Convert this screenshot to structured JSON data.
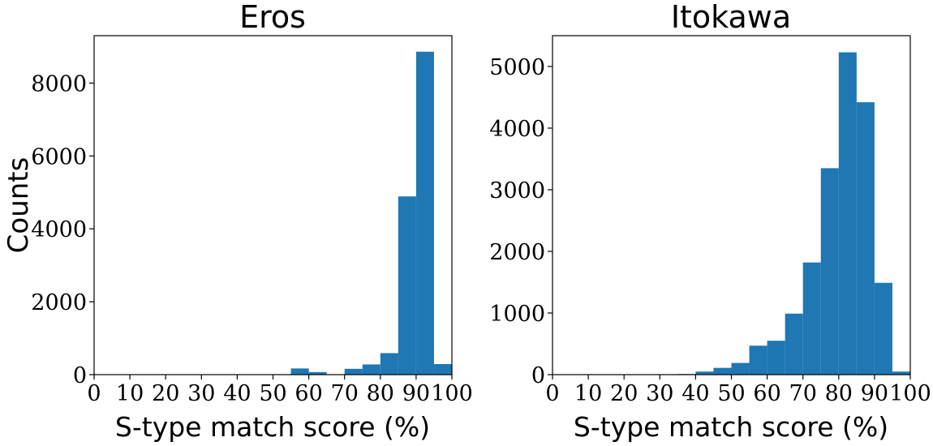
{
  "chart_data": [
    {
      "type": "bar",
      "title": "Eros",
      "xlabel": "S-type match score (%)",
      "ylabel": "Counts",
      "xlim": [
        0,
        100
      ],
      "ylim": [
        0,
        9300
      ],
      "bin_width": 5,
      "xticks": [
        "0",
        "10",
        "20",
        "30",
        "40",
        "50",
        "60",
        "70",
        "80",
        "90",
        "100"
      ],
      "yticks": [
        "0",
        "2000",
        "4000",
        "6000",
        "8000"
      ],
      "bins": [
        {
          "x0": 55,
          "x1": 60,
          "value": 170
        },
        {
          "x0": 60,
          "x1": 65,
          "value": 70
        },
        {
          "x0": 70,
          "x1": 75,
          "value": 160
        },
        {
          "x0": 75,
          "x1": 80,
          "value": 280
        },
        {
          "x0": 80,
          "x1": 85,
          "value": 590
        },
        {
          "x0": 85,
          "x1": 90,
          "value": 4890
        },
        {
          "x0": 90,
          "x1": 95,
          "value": 8860
        },
        {
          "x0": 95,
          "x1": 100,
          "value": 290
        }
      ]
    },
    {
      "type": "bar",
      "title": "Itokawa",
      "xlabel": "S-type match score (%)",
      "ylabel": "",
      "xlim": [
        0,
        100
      ],
      "ylim": [
        0,
        5500
      ],
      "bin_width": 5,
      "xticks": [
        "0",
        "10",
        "20",
        "30",
        "40",
        "50",
        "60",
        "70",
        "80",
        "90",
        "100"
      ],
      "yticks": [
        "0",
        "1000",
        "2000",
        "3000",
        "4000",
        "5000"
      ],
      "bins": [
        {
          "x0": 30,
          "x1": 35,
          "value": 5
        },
        {
          "x0": 35,
          "x1": 40,
          "value": 10
        },
        {
          "x0": 40,
          "x1": 45,
          "value": 50
        },
        {
          "x0": 45,
          "x1": 50,
          "value": 110
        },
        {
          "x0": 50,
          "x1": 55,
          "value": 190
        },
        {
          "x0": 55,
          "x1": 60,
          "value": 470
        },
        {
          "x0": 60,
          "x1": 65,
          "value": 550
        },
        {
          "x0": 65,
          "x1": 70,
          "value": 990
        },
        {
          "x0": 70,
          "x1": 75,
          "value": 1820
        },
        {
          "x0": 75,
          "x1": 80,
          "value": 3350
        },
        {
          "x0": 80,
          "x1": 85,
          "value": 5230
        },
        {
          "x0": 85,
          "x1": 90,
          "value": 4420
        },
        {
          "x0": 90,
          "x1": 95,
          "value": 1490
        },
        {
          "x0": 95,
          "x1": 100,
          "value": 50
        }
      ]
    }
  ]
}
